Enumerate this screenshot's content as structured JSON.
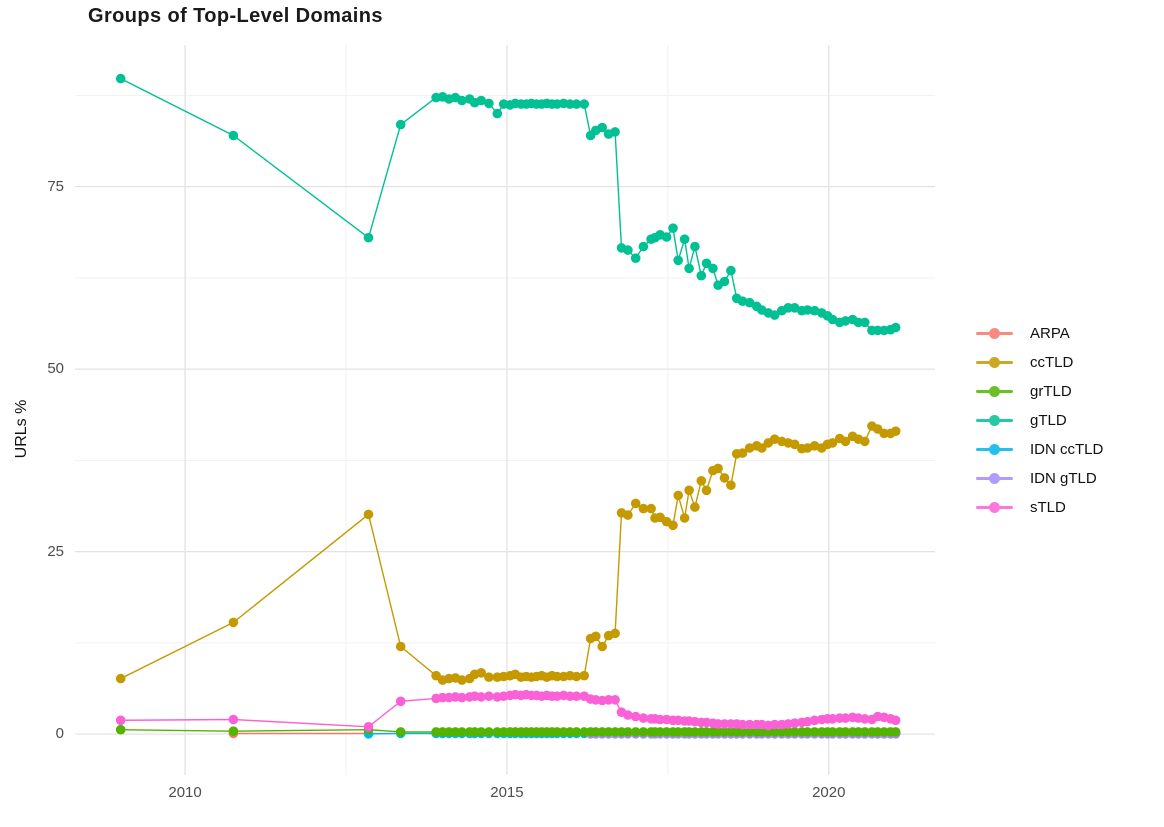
{
  "title": "Groups of Top-Level Domains",
  "chart_data": {
    "type": "scatter",
    "title": "Groups of Top-Level Domains",
    "xlabel": "",
    "ylabel": "URLs %",
    "xlim": [
      2008.29,
      2021.65
    ],
    "ylim": [
      -5.6,
      94.4
    ],
    "x_major_ticks": [
      2010,
      2015,
      2020
    ],
    "x_minor_gridlines": [
      2012.5,
      2017.5
    ],
    "y_major_ticks": [
      0,
      25,
      50,
      75
    ],
    "y_minor_gridlines": [
      12.5,
      37.5,
      62.5,
      87.5
    ],
    "grid": true,
    "legend_position": "right",
    "marker_radius": 4.8,
    "draw_order": [
      "ARPA",
      "IDN ccTLD",
      "IDN gTLD",
      "ccTLD",
      "grTLD",
      "gTLD",
      "sTLD"
    ],
    "dense_x": [
      2013.9,
      2014.0,
      2014.1,
      2014.2,
      2014.3,
      2014.42,
      2014.5,
      2014.6,
      2014.72,
      2014.85,
      2014.95,
      2015.05,
      2015.13,
      2015.22,
      2015.3,
      2015.38,
      2015.46,
      2015.54,
      2015.62,
      2015.7,
      2015.78,
      2015.88,
      2015.98,
      2016.08,
      2016.2,
      2016.3,
      2016.38,
      2016.48,
      2016.58,
      2016.68,
      2016.78,
      2016.88,
      2017.0,
      2017.12,
      2017.24,
      2017.3,
      2017.38,
      2017.48,
      2017.58,
      2017.66,
      2017.76,
      2017.83,
      2017.92,
      2018.02,
      2018.1,
      2018.2,
      2018.28,
      2018.38,
      2018.48,
      2018.57,
      2018.66,
      2018.77,
      2018.88,
      2018.96,
      2019.06,
      2019.16,
      2019.27,
      2019.37,
      2019.47,
      2019.58,
      2019.67,
      2019.78,
      2019.89,
      2019.98,
      2020.06,
      2020.17,
      2020.26,
      2020.37,
      2020.46,
      2020.56,
      2020.67,
      2020.76,
      2020.86,
      2020.96,
      2021.04
    ],
    "series": [
      {
        "name": "ARPA",
        "color": "#F8766D",
        "sparse": [
          [
            2010.75,
            0.1
          ],
          [
            2012.85,
            0.1
          ]
        ]
      },
      {
        "name": "ccTLD",
        "color": "#C49A00",
        "sparse": [
          [
            2009.0,
            7.6
          ],
          [
            2010.75,
            15.3
          ],
          [
            2012.85,
            30.1
          ],
          [
            2013.35,
            12.0
          ]
        ],
        "dense_y": [
          8.0,
          7.4,
          7.6,
          7.7,
          7.4,
          7.6,
          8.2,
          8.4,
          7.8,
          7.8,
          7.9,
          8.0,
          8.2,
          7.8,
          7.9,
          7.8,
          7.9,
          8.0,
          7.8,
          8.0,
          7.9,
          7.9,
          8.0,
          7.9,
          8.0,
          13.1,
          13.4,
          12.0,
          13.5,
          13.8,
          30.3,
          30.0,
          31.6,
          30.9,
          30.9,
          29.6,
          29.7,
          29.1,
          28.6,
          32.7,
          29.6,
          33.4,
          31.1,
          34.7,
          33.4,
          36.1,
          36.4,
          35.1,
          34.1,
          38.4,
          38.5,
          39.2,
          39.5,
          39.2,
          39.9,
          40.4,
          40.1,
          39.9,
          39.7,
          39.1,
          39.2,
          39.5,
          39.2,
          39.7,
          39.9,
          40.5,
          40.1,
          40.8,
          40.4,
          40.1,
          42.2,
          41.8,
          41.2,
          41.2,
          41.5
        ]
      },
      {
        "name": "grTLD",
        "color": "#53B400",
        "sparse": [
          [
            2009.0,
            0.6
          ],
          [
            2010.75,
            0.4
          ],
          [
            2012.85,
            0.6
          ],
          [
            2013.35,
            0.3
          ]
        ],
        "dense_const": 0.3
      },
      {
        "name": "gTLD",
        "color": "#00C094",
        "sparse": [
          [
            2009.0,
            89.8
          ],
          [
            2010.75,
            82.0
          ],
          [
            2012.85,
            68.0
          ],
          [
            2013.35,
            83.5
          ]
        ],
        "dense_y": [
          87.2,
          87.3,
          87.0,
          87.2,
          86.8,
          87.0,
          86.5,
          86.8,
          86.4,
          85.0,
          86.3,
          86.2,
          86.4,
          86.3,
          86.3,
          86.4,
          86.3,
          86.3,
          86.4,
          86.3,
          86.3,
          86.4,
          86.3,
          86.3,
          86.3,
          82.0,
          82.7,
          83.1,
          82.2,
          82.5,
          66.6,
          66.3,
          65.2,
          66.8,
          67.8,
          68.0,
          68.4,
          68.1,
          69.3,
          64.9,
          67.8,
          63.8,
          66.8,
          62.8,
          64.5,
          63.8,
          61.5,
          62.0,
          63.5,
          59.7,
          59.3,
          59.1,
          58.6,
          58.1,
          57.7,
          57.4,
          58.0,
          58.4,
          58.4,
          58.0,
          58.1,
          58.0,
          57.7,
          57.3,
          56.8,
          56.4,
          56.6,
          56.8,
          56.4,
          56.4,
          55.3,
          55.3,
          55.3,
          55.4,
          55.7
        ]
      },
      {
        "name": "IDN ccTLD",
        "color": "#00B6EB",
        "sparse": [
          [
            2012.85,
            0.05
          ],
          [
            2013.35,
            0.1
          ]
        ],
        "dense_const": 0.1
      },
      {
        "name": "IDN gTLD",
        "color": "#A58AFF",
        "sparse": [],
        "dense_const": 0.05,
        "dense_offset": 25
      },
      {
        "name": "sTLD",
        "color": "#FB61D7",
        "sparse": [
          [
            2009.0,
            1.9
          ],
          [
            2010.75,
            2.0
          ],
          [
            2012.85,
            1.0
          ],
          [
            2013.35,
            4.5
          ]
        ],
        "dense_y": [
          4.9,
          5.0,
          5.0,
          5.1,
          5.0,
          5.1,
          5.2,
          5.1,
          5.2,
          5.1,
          5.2,
          5.3,
          5.4,
          5.3,
          5.4,
          5.3,
          5.3,
          5.2,
          5.3,
          5.2,
          5.2,
          5.3,
          5.2,
          5.2,
          5.2,
          4.8,
          4.7,
          4.6,
          4.7,
          4.7,
          3.0,
          2.6,
          2.4,
          2.2,
          2.1,
          2.1,
          2.0,
          2.0,
          1.9,
          1.9,
          1.8,
          1.8,
          1.7,
          1.6,
          1.6,
          1.5,
          1.4,
          1.4,
          1.4,
          1.4,
          1.3,
          1.3,
          1.3,
          1.3,
          1.2,
          1.3,
          1.3,
          1.4,
          1.5,
          1.6,
          1.7,
          1.9,
          2.0,
          2.1,
          2.1,
          2.2,
          2.2,
          2.3,
          2.2,
          2.1,
          2.0,
          2.4,
          2.3,
          2.1,
          1.9
        ]
      }
    ]
  }
}
